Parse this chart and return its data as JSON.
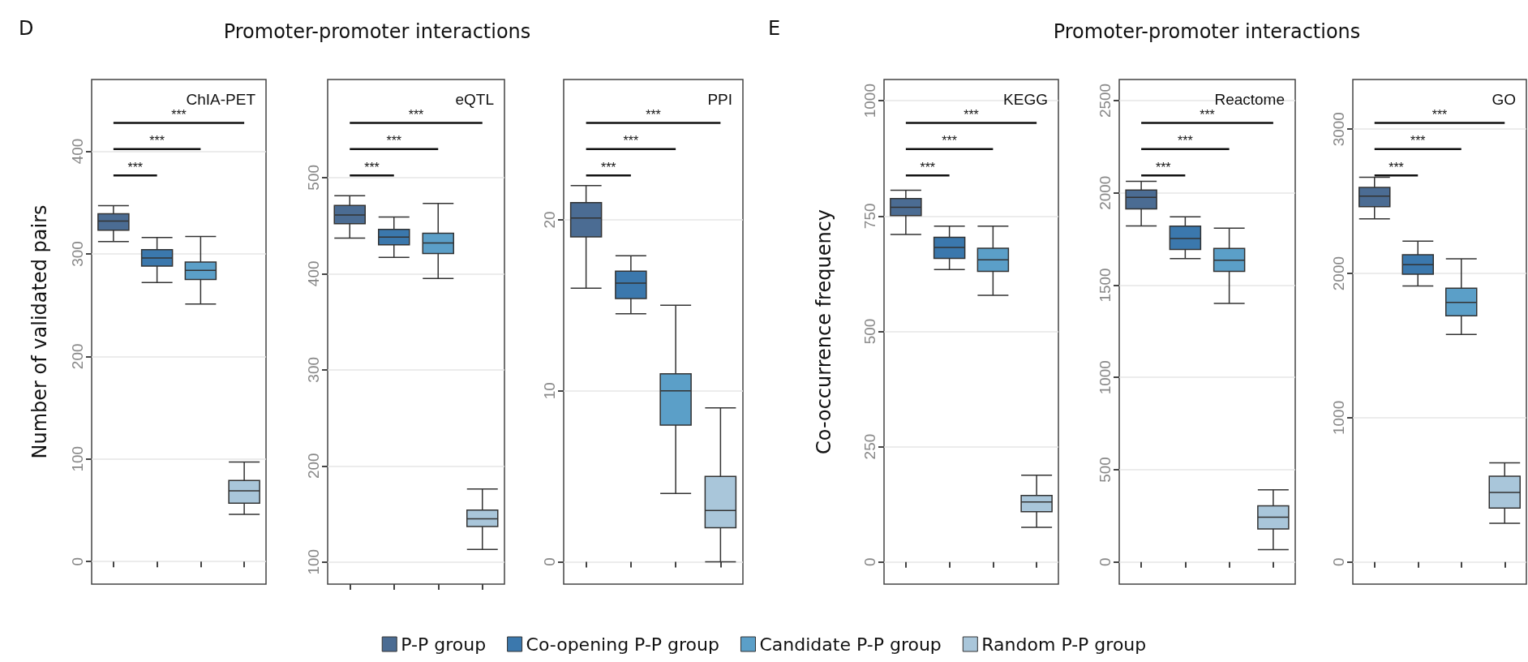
{
  "chart_data": [
    {
      "type": "box",
      "title": "D",
      "subtitle": "ChIA-PET",
      "ylabel": "Number of validated pairs",
      "categories": [
        null,
        null,
        null,
        null
      ],
      "ylim": [
        -22,
        470
      ],
      "yticks": [
        0,
        100,
        200,
        300,
        400
      ],
      "grid": true,
      "tick_labels": "y",
      "legend": "bottom",
      "annotations": [
        "***",
        "***",
        "***"
      ],
      "series": [
        {
          "name": "P-P group",
          "color": "#4b6c93",
          "boxes": [
            {
              "low": 312,
              "q1": 323,
              "median": 332,
              "q3": 339,
              "high": 347
            },
            null,
            null,
            null
          ]
        },
        {
          "name": "Co-opening P-P group",
          "color": "#3b78ad",
          "boxes": [
            null,
            {
              "low": 272,
              "q1": 288,
              "median": 296,
              "q3": 304,
              "high": 316
            },
            null,
            null
          ]
        },
        {
          "name": "Candidate P-P group",
          "color": "#5b9fc8",
          "boxes": [
            null,
            null,
            {
              "low": 251,
              "q1": 275,
              "median": 284,
              "q3": 292,
              "high": 317
            },
            null
          ]
        },
        {
          "name": "Random P-P group",
          "color": "#a9c6da",
          "boxes": [
            null,
            null,
            null,
            {
              "low": 46,
              "q1": 57,
              "median": 69,
              "q3": 79,
              "high": 97
            }
          ]
        }
      ]
    },
    {
      "type": "box",
      "title": "Promoter-promoter interactions",
      "subtitle": "eQTL",
      "categories": [
        null,
        null,
        null,
        null
      ],
      "ylim": [
        77,
        602
      ],
      "yticks": [
        100,
        200,
        300,
        400,
        500
      ],
      "grid": true,
      "tick_labels": "y",
      "annotations": [
        "***",
        "***",
        "***"
      ],
      "series": [
        {
          "color": "#4b6c93",
          "boxes": [
            {
              "low": 437,
              "q1": 452,
              "median": 461,
              "q3": 471,
              "high": 481
            },
            null,
            null,
            null
          ]
        },
        {
          "color": "#3b78ad",
          "boxes": [
            null,
            {
              "low": 417,
              "q1": 430,
              "median": 438,
              "q3": 446,
              "high": 459
            },
            null,
            null
          ]
        },
        {
          "color": "#5b9fc8",
          "boxes": [
            null,
            null,
            {
              "low": 395,
              "q1": 421,
              "median": 432,
              "q3": 442,
              "high": 473
            },
            null
          ]
        },
        {
          "color": "#a9c6da",
          "boxes": [
            null,
            null,
            null,
            {
              "low": 113,
              "q1": 137,
              "median": 145,
              "q3": 154,
              "high": 176
            }
          ]
        }
      ]
    },
    {
      "type": "box",
      "subtitle": "PPI",
      "categories": [
        null,
        null,
        null,
        null
      ],
      "ylim": [
        -1.3,
        28.2
      ],
      "yticks": [
        0,
        10,
        20
      ],
      "grid": true,
      "tick_labels": "y",
      "annotations": [
        "***",
        "***",
        "***"
      ],
      "series": [
        {
          "color": "#4b6c93",
          "boxes": [
            {
              "low": 16,
              "q1": 19,
              "median": 20.1,
              "q3": 21,
              "high": 22
            },
            null,
            null,
            null
          ]
        },
        {
          "color": "#3b78ad",
          "boxes": [
            null,
            {
              "low": 14.5,
              "q1": 15.4,
              "median": 16.3,
              "q3": 17,
              "high": 17.9
            },
            null,
            null
          ]
        },
        {
          "color": "#5b9fc8",
          "boxes": [
            null,
            null,
            {
              "low": 4,
              "q1": 8,
              "median": 10,
              "q3": 11,
              "high": 15
            },
            null
          ]
        },
        {
          "color": "#a9c6da",
          "boxes": [
            null,
            null,
            null,
            {
              "low": 0,
              "q1": 2,
              "median": 3,
              "q3": 5,
              "high": 9
            }
          ]
        }
      ]
    },
    {
      "type": "box",
      "title": "E",
      "subtitle": "KEGG",
      "ylabel": "Co-occurrence frequency",
      "categories": [
        null,
        null,
        null,
        null
      ],
      "ylim": [
        -48,
        1046
      ],
      "yticks": [
        0,
        250,
        500,
        750,
        1000
      ],
      "grid": true,
      "tick_labels": "y",
      "annotations": [
        "***",
        "***",
        "***"
      ],
      "series": [
        {
          "color": "#4b6c93",
          "boxes": [
            {
              "low": 710,
              "q1": 751,
              "median": 769,
              "q3": 788,
              "high": 806
            },
            null,
            null,
            null
          ]
        },
        {
          "color": "#3b78ad",
          "boxes": [
            null,
            {
              "low": 634,
              "q1": 658,
              "median": 682,
              "q3": 704,
              "high": 728
            },
            null,
            null
          ]
        },
        {
          "color": "#5b9fc8",
          "boxes": [
            null,
            null,
            {
              "low": 578,
              "q1": 630,
              "median": 655,
              "q3": 680,
              "high": 728
            },
            null
          ]
        },
        {
          "color": "#a9c6da",
          "boxes": [
            null,
            null,
            null,
            {
              "low": 75,
              "q1": 109,
              "median": 130,
              "q3": 144,
              "high": 188
            }
          ]
        }
      ]
    },
    {
      "type": "box",
      "title": "Promoter-promoter interactions",
      "subtitle": "Reactome",
      "categories": [
        null,
        null,
        null,
        null
      ],
      "ylim": [
        -120,
        2614
      ],
      "yticks": [
        0,
        500,
        1000,
        1500,
        2000,
        2500
      ],
      "grid": true,
      "tick_labels": "y",
      "annotations": [
        "***",
        "***",
        "***"
      ],
      "series": [
        {
          "color": "#4b6c93",
          "boxes": [
            {
              "low": 1821,
              "q1": 1913,
              "median": 1976,
              "q3": 2015,
              "high": 2062
            },
            null,
            null,
            null
          ]
        },
        {
          "color": "#3b78ad",
          "boxes": [
            null,
            {
              "low": 1644,
              "q1": 1693,
              "median": 1752,
              "q3": 1819,
              "high": 1870
            },
            null,
            null
          ]
        },
        {
          "color": "#5b9fc8",
          "boxes": [
            null,
            null,
            {
              "low": 1401,
              "q1": 1574,
              "median": 1635,
              "q3": 1699,
              "high": 1809
            },
            null
          ]
        },
        {
          "color": "#a9c6da",
          "boxes": [
            null,
            null,
            null,
            {
              "low": 67,
              "q1": 179,
              "median": 243,
              "q3": 304,
              "high": 391
            }
          ]
        }
      ]
    },
    {
      "type": "box",
      "subtitle": "GO",
      "categories": [
        null,
        null,
        null,
        null
      ],
      "ylim": [
        -153,
        3344
      ],
      "yticks": [
        0,
        1000,
        2000,
        3000
      ],
      "grid": true,
      "tick_labels": "y",
      "annotations": [
        "***",
        "***",
        "***"
      ],
      "series": [
        {
          "color": "#4b6c93",
          "boxes": [
            {
              "low": 2378,
              "q1": 2463,
              "median": 2536,
              "q3": 2596,
              "high": 2666
            },
            null,
            null,
            null
          ]
        },
        {
          "color": "#3b78ad",
          "boxes": [
            null,
            {
              "low": 1913,
              "q1": 1994,
              "median": 2061,
              "q3": 2129,
              "high": 2224
            },
            null,
            null
          ]
        },
        {
          "color": "#5b9fc8",
          "boxes": [
            null,
            null,
            {
              "low": 1577,
              "q1": 1707,
              "median": 1800,
              "q3": 1898,
              "high": 2101
            },
            null
          ]
        },
        {
          "color": "#a9c6da",
          "boxes": [
            null,
            null,
            null,
            {
              "low": 269,
              "q1": 374,
              "median": 482,
              "q3": 595,
              "high": 688
            }
          ]
        }
      ]
    }
  ]
}
